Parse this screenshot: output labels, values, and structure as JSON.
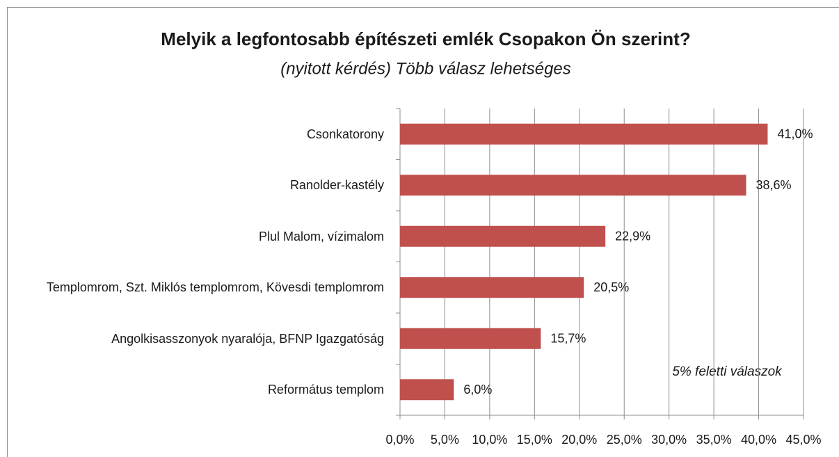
{
  "chart_data": {
    "type": "bar",
    "orientation": "horizontal",
    "title": "Melyik a legfontosabb építészeti emlék Csopakon Ön szerint?",
    "subtitle": "(nyitott kérdés) Több válasz lehetséges",
    "annotation": "5% feletti válaszok",
    "categories": [
      "Csonkatorony",
      "Ranolder-kastély",
      "Plul Malom, vízimalom",
      "Templomrom, Szt. Miklós templomrom, Kövesdi templomrom",
      "Angolkisasszonyok nyaralója, BFNP Igazgatóság",
      "Református templom"
    ],
    "values": [
      41.0,
      38.6,
      22.9,
      20.5,
      15.7,
      6.0
    ],
    "value_labels": [
      "41,0%",
      "38,6%",
      "22,9%",
      "20,5%",
      "15,7%",
      "6,0%"
    ],
    "color": "#c0504d",
    "xlim": [
      0,
      45
    ],
    "xticks": [
      {
        "value": 0,
        "label": "0,0%"
      },
      {
        "value": 5,
        "label": "5,0%"
      },
      {
        "value": 10,
        "label": "10,0%"
      },
      {
        "value": 15,
        "label": "15,0%"
      },
      {
        "value": 20,
        "label": "20,0%"
      },
      {
        "value": 25,
        "label": "25,0%"
      },
      {
        "value": 30,
        "label": "30,0%"
      },
      {
        "value": 35,
        "label": "35,0%"
      },
      {
        "value": 40,
        "label": "40,0%"
      },
      {
        "value": 45,
        "label": "45,0%"
      }
    ],
    "grid": true
  }
}
